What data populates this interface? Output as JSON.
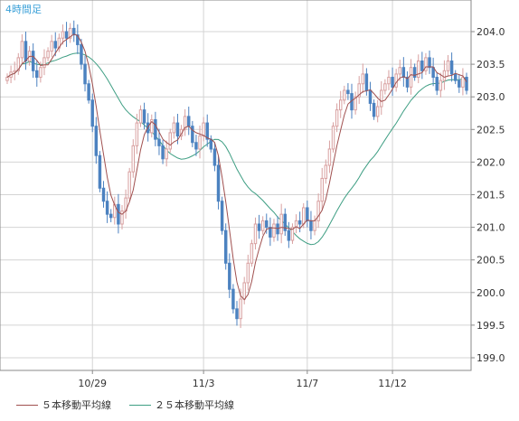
{
  "chart_data": {
    "type": "candlestick",
    "title": "4時間足",
    "y_axis": {
      "min": 199.0,
      "max": 204.0,
      "step": 0.5,
      "ticks": [
        "204.0",
        "203.5",
        "203.0",
        "202.5",
        "202.0",
        "201.5",
        "201.0",
        "200.5",
        "200.0",
        "199.5",
        "199.0"
      ]
    },
    "x_labels": [
      {
        "label": "10/29",
        "index": 23
      },
      {
        "label": "11/3",
        "index": 53
      },
      {
        "label": "11/7",
        "index": 81
      },
      {
        "label": "11/12",
        "index": 104
      }
    ],
    "grid": true,
    "colors": {
      "up": "#d8a0a0",
      "down": "#4c82c0",
      "ma5": "#a0504f",
      "ma25": "#3e9e83",
      "grid": "#d4d4d4",
      "border": "#8a8a8a",
      "title": "#3aa0d8"
    },
    "series": [
      {
        "name": "５本移動平均線",
        "color": "#a0504f"
      },
      {
        "name": "２５本移動平均線",
        "color": "#3e9e83"
      }
    ],
    "closes": [
      203.3,
      203.38,
      203.4,
      203.6,
      203.85,
      203.55,
      203.7,
      203.4,
      203.3,
      203.45,
      203.6,
      203.7,
      203.85,
      203.75,
      203.9,
      204.0,
      203.9,
      204.05,
      203.95,
      203.8,
      203.5,
      203.2,
      202.95,
      202.55,
      202.1,
      201.6,
      201.4,
      201.2,
      201.15,
      201.35,
      201.05,
      201.25,
      201.45,
      201.85,
      202.25,
      202.6,
      202.8,
      202.6,
      202.45,
      202.65,
      202.35,
      202.25,
      202.05,
      202.2,
      202.45,
      202.6,
      202.4,
      202.5,
      202.7,
      202.55,
      202.3,
      202.2,
      202.4,
      202.6,
      202.35,
      202.2,
      201.95,
      201.4,
      200.95,
      200.45,
      200.05,
      199.75,
      199.6,
      199.9,
      200.15,
      200.45,
      200.75,
      201.05,
      200.95,
      201.1,
      201.0,
      200.85,
      201.05,
      200.9,
      201.2,
      200.95,
      200.8,
      201.0,
      201.1,
      201.05,
      201.3,
      201.1,
      200.95,
      201.1,
      201.4,
      201.75,
      201.95,
      202.2,
      202.55,
      202.8,
      202.95,
      203.1,
      203.05,
      202.8,
      203.0,
      203.2,
      203.35,
      203.1,
      202.9,
      202.7,
      202.85,
      203.1,
      203.2,
      203.3,
      203.15,
      203.35,
      203.45,
      203.3,
      203.15,
      203.45,
      203.3,
      203.55,
      203.4,
      203.6,
      203.45,
      203.3,
      203.1,
      203.25,
      203.4,
      203.55,
      203.35,
      203.25,
      203.15,
      203.3,
      203.1
    ]
  },
  "legend": {
    "ma5_label": "５本移動平均線",
    "ma25_label": "２５本移動平均線"
  }
}
